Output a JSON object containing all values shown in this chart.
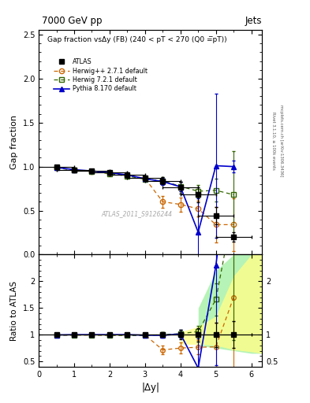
{
  "title_left": "7000 GeV pp",
  "title_right": "Jets",
  "plot_title": "Gap fraction vsΔy (FB) (240 < pT < 270 (Q0 =̅pT))",
  "watermark": "ATLAS_2011_S9126244",
  "xlabel": "|Δy|",
  "ylabel_main": "Gap fraction",
  "ylabel_ratio": "Ratio to ATLAS",
  "right_label1": "Rivet 3.1.10, ≥ 100k events",
  "right_label2": "mcplots.cern.ch [arXiv:1306.3436]",
  "atlas_x": [
    0.5,
    1.0,
    1.5,
    2.0,
    2.5,
    3.0,
    3.5,
    4.0,
    4.5,
    5.0,
    5.5
  ],
  "atlas_y": [
    0.995,
    0.965,
    0.95,
    0.93,
    0.905,
    0.87,
    0.84,
    0.76,
    0.68,
    0.44,
    0.2
  ],
  "atlas_yerr": [
    0.02,
    0.02,
    0.02,
    0.025,
    0.025,
    0.03,
    0.04,
    0.065,
    0.085,
    0.1,
    0.05
  ],
  "atlas_xerr": [
    0.5,
    0.5,
    0.5,
    0.5,
    0.5,
    0.5,
    0.5,
    0.5,
    0.5,
    0.5,
    0.5
  ],
  "herwig_x": [
    0.5,
    1.0,
    1.5,
    2.0,
    2.5,
    3.0,
    3.5,
    4.0,
    4.5,
    5.0,
    5.5
  ],
  "herwig_y": [
    0.988,
    0.96,
    0.945,
    0.922,
    0.9,
    0.865,
    0.6,
    0.57,
    0.52,
    0.34,
    0.34
  ],
  "herwig_yerr": [
    0.01,
    0.01,
    0.012,
    0.015,
    0.018,
    0.025,
    0.07,
    0.08,
    0.09,
    0.2,
    0.3
  ],
  "herwig72_x": [
    0.5,
    1.0,
    1.5,
    2.0,
    2.5,
    3.0,
    3.5,
    4.0,
    4.5,
    5.0,
    5.5
  ],
  "herwig72_y": [
    0.985,
    0.958,
    0.945,
    0.92,
    0.892,
    0.857,
    0.84,
    0.775,
    0.72,
    0.73,
    0.68
  ],
  "herwig72_yerr": [
    0.01,
    0.01,
    0.012,
    0.015,
    0.018,
    0.02,
    0.04,
    0.055,
    0.07,
    0.13,
    0.5
  ],
  "pythia_x": [
    0.5,
    1.0,
    1.5,
    2.0,
    2.5,
    3.0,
    3.5,
    4.0,
    4.5,
    5.0,
    5.5
  ],
  "pythia_y": [
    0.99,
    0.965,
    0.95,
    0.93,
    0.905,
    0.862,
    0.83,
    0.77,
    0.255,
    1.01,
    1.0
  ],
  "pythia_yerr": [
    0.01,
    0.01,
    0.012,
    0.015,
    0.018,
    0.025,
    0.04,
    0.055,
    0.38,
    0.82,
    0.07
  ],
  "atlas_color": "#000000",
  "herwig_color": "#cc6600",
  "herwig72_color": "#336600",
  "pythia_color": "#0000cc",
  "xlim": [
    0,
    6.3
  ],
  "ylim_main": [
    0.0,
    2.55
  ],
  "ylim_ratio": [
    0.4,
    2.5
  ],
  "ratio_green_band_x": [
    4.5,
    5.0,
    5.5,
    6.0,
    6.3
  ],
  "ratio_green_band_hi": [
    1.5,
    2.2,
    2.5,
    2.5,
    2.5
  ],
  "ratio_green_band_lo": [
    0.8,
    0.75,
    0.7,
    0.65,
    0.65
  ],
  "ratio_yellow_band_x": [
    4.0,
    4.5,
    5.0,
    5.5,
    6.0,
    6.3
  ],
  "ratio_yellow_band_hi": [
    1.05,
    1.15,
    1.35,
    2.1,
    2.5,
    2.5
  ],
  "ratio_yellow_band_lo": [
    0.82,
    0.82,
    0.8,
    0.72,
    0.68,
    0.65
  ]
}
